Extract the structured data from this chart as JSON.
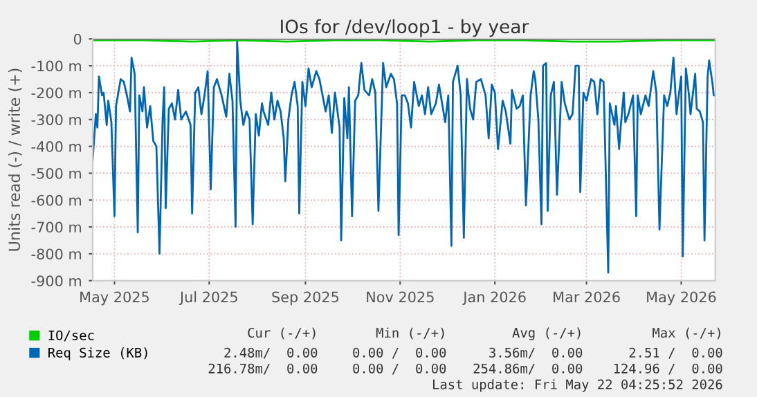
{
  "chart_data": {
    "type": "line",
    "title": "IOs for /dev/loop1 - by year",
    "ylabel": "Units read (-) / write (+)",
    "xlim": [
      "2025-04-17",
      "2026-05-23"
    ],
    "xticks": [
      {
        "value": "2025-05-01",
        "label": "May 2025"
      },
      {
        "value": "2025-07-01",
        "label": "Jul 2025"
      },
      {
        "value": "2025-09-01",
        "label": "Sep 2025"
      },
      {
        "value": "2025-11-01",
        "label": "Nov 2025"
      },
      {
        "value": "2026-01-01",
        "label": "Jan 2026"
      },
      {
        "value": "2026-03-01",
        "label": "Mar 2026"
      },
      {
        "value": "2026-05-01",
        "label": "May 2026"
      }
    ],
    "ylim": [
      -900,
      0
    ],
    "yticks": [
      {
        "value": -900,
        "label": "-900 m"
      },
      {
        "value": -800,
        "label": "-800 m"
      },
      {
        "value": -700,
        "label": "-700 m"
      },
      {
        "value": -600,
        "label": "-600 m"
      },
      {
        "value": -500,
        "label": "-500 m"
      },
      {
        "value": -400,
        "label": "-400 m"
      },
      {
        "value": -300,
        "label": "-300 m"
      },
      {
        "value": -200,
        "label": "-200 m"
      },
      {
        "value": -100,
        "label": "-100 m"
      },
      0
    ],
    "grid": true,
    "legend": "bottom",
    "line_style": "solid",
    "marker": "none",
    "ref_lines": [
      {
        "axis": "y",
        "value": 0,
        "color": "#000000"
      }
    ],
    "series": [
      {
        "name": "IO/sec",
        "color": "#00cc00",
        "x": [
          "2025-04-17",
          "2025-05-20",
          "2025-06-20",
          "2025-07-20",
          "2025-08-20",
          "2025-09-20",
          "2025-10-20",
          "2025-11-20",
          "2025-12-20",
          "2026-01-20",
          "2026-02-20",
          "2026-03-20",
          "2026-04-20",
          "2026-05-22"
        ],
        "values": [
          -5,
          -5,
          -10,
          -5,
          -10,
          -5,
          -5,
          -10,
          -5,
          -5,
          -10,
          -10,
          -5,
          -5
        ]
      },
      {
        "name": "Req Size (KB)",
        "color": "#0066b3",
        "x": [
          "2025-04-17",
          "2025-04-19",
          "2025-04-20",
          "2025-04-21",
          "2025-04-23",
          "2025-04-24",
          "2025-04-26",
          "2025-04-27",
          "2025-04-29",
          "2025-05-01",
          "2025-05-02",
          "2025-05-05",
          "2025-05-07",
          "2025-05-09",
          "2025-05-11",
          "2025-05-12",
          "2025-05-14",
          "2025-05-16",
          "2025-05-17",
          "2025-05-19",
          "2025-05-20",
          "2025-05-22",
          "2025-05-24",
          "2025-05-26",
          "2025-05-28",
          "2025-05-30",
          "2025-06-01",
          "2025-06-02",
          "2025-06-03",
          "2025-06-05",
          "2025-06-07",
          "2025-06-09",
          "2025-06-11",
          "2025-06-13",
          "2025-06-16",
          "2025-06-19",
          "2025-06-20",
          "2025-06-22",
          "2025-06-24",
          "2025-06-26",
          "2025-06-28",
          "2025-06-30",
          "2025-07-02",
          "2025-07-04",
          "2025-07-06",
          "2025-07-09",
          "2025-07-12",
          "2025-07-14",
          "2025-07-16",
          "2025-07-18",
          "2025-07-19",
          "2025-07-21",
          "2025-07-23",
          "2025-07-25",
          "2025-07-27",
          "2025-07-29",
          "2025-07-31",
          "2025-08-02",
          "2025-08-04",
          "2025-08-05",
          "2025-08-08",
          "2025-08-10",
          "2025-08-12",
          "2025-08-14",
          "2025-08-16",
          "2025-08-18",
          "2025-08-19",
          "2025-08-21",
          "2025-08-23",
          "2025-08-25",
          "2025-08-27",
          "2025-08-28",
          "2025-08-30",
          "2025-09-01",
          "2025-09-03",
          "2025-09-05",
          "2025-09-08",
          "2025-09-10",
          "2025-09-12",
          "2025-09-14",
          "2025-09-16",
          "2025-09-18",
          "2025-09-20",
          "2025-09-23",
          "2025-09-24",
          "2025-09-26",
          "2025-09-28",
          "2025-09-29",
          "2025-10-01",
          "2025-10-03",
          "2025-10-05",
          "2025-10-07",
          "2025-10-09",
          "2025-10-12",
          "2025-10-14",
          "2025-10-16",
          "2025-10-18",
          "2025-10-21",
          "2025-10-23",
          "2025-10-26",
          "2025-10-28",
          "2025-10-30",
          "2025-10-31",
          "2025-11-02",
          "2025-11-04",
          "2025-11-06",
          "2025-11-08",
          "2025-11-10",
          "2025-11-13",
          "2025-11-15",
          "2025-11-17",
          "2025-11-19",
          "2025-11-21",
          "2025-11-24",
          "2025-11-26",
          "2025-11-28",
          "2025-11-30",
          "2025-12-02",
          "2025-12-04",
          "2025-12-05",
          "2025-12-08",
          "2025-12-10",
          "2025-12-12",
          "2025-12-14",
          "2025-12-16",
          "2025-12-18",
          "2025-12-20",
          "2025-12-23",
          "2025-12-26",
          "2025-12-28",
          "2025-12-30",
          "2026-01-01",
          "2026-01-03",
          "2026-01-06",
          "2026-01-08",
          "2026-01-11",
          "2026-01-12",
          "2026-01-15",
          "2026-01-17",
          "2026-01-19",
          "2026-01-21",
          "2026-01-24",
          "2026-01-26",
          "2026-01-27",
          "2026-01-29",
          "2026-01-31",
          "2026-02-01",
          "2026-02-03",
          "2026-02-04",
          "2026-02-06",
          "2026-02-08",
          "2026-02-10",
          "2026-02-13",
          "2026-02-15",
          "2026-02-18",
          "2026-02-20",
          "2026-02-22",
          "2026-02-24",
          "2026-02-25",
          "2026-02-27",
          "2026-03-01",
          "2026-03-04",
          "2026-03-06",
          "2026-03-08",
          "2026-03-10",
          "2026-03-12",
          "2026-03-15",
          "2026-03-16",
          "2026-03-19",
          "2026-03-20",
          "2026-03-22",
          "2026-03-23",
          "2026-03-25",
          "2026-03-26",
          "2026-03-28",
          "2026-03-31",
          "2026-04-02",
          "2026-04-03",
          "2026-04-05",
          "2026-04-08",
          "2026-04-10",
          "2026-04-13",
          "2026-04-15",
          "2026-04-17",
          "2026-04-20",
          "2026-04-22",
          "2026-04-24",
          "2026-04-26",
          "2026-04-28",
          "2026-04-29",
          "2026-05-01",
          "2026-05-02",
          "2026-05-04",
          "2026-05-06",
          "2026-05-07",
          "2026-05-10",
          "2026-05-11",
          "2026-05-13",
          "2026-05-15",
          "2026-05-16",
          "2026-05-18",
          "2026-05-19",
          "2026-05-21",
          "2026-05-22"
        ],
        "values": [
          -450,
          -280,
          -330,
          -140,
          -210,
          -200,
          -320,
          -230,
          -310,
          -660,
          -250,
          -150,
          -160,
          -210,
          -270,
          -70,
          -130,
          -720,
          -210,
          -270,
          -180,
          -330,
          -250,
          -380,
          -400,
          -800,
          -300,
          -180,
          -630,
          -260,
          -240,
          -300,
          -190,
          -300,
          -270,
          -320,
          -650,
          -200,
          -180,
          -280,
          -210,
          -120,
          -560,
          -180,
          -150,
          -210,
          -290,
          -130,
          -230,
          -700,
          -10,
          -230,
          -320,
          -270,
          -300,
          -690,
          -280,
          -360,
          -240,
          -270,
          -320,
          -200,
          -300,
          -230,
          -270,
          -370,
          -530,
          -300,
          -210,
          -160,
          -250,
          -650,
          -160,
          -250,
          -110,
          -180,
          -120,
          -150,
          -210,
          -270,
          -210,
          -350,
          -200,
          -330,
          -750,
          -220,
          -370,
          -180,
          -660,
          -230,
          -210,
          -90,
          -190,
          -210,
          -150,
          -200,
          -640,
          -90,
          -180,
          -130,
          -150,
          -240,
          -730,
          -210,
          -210,
          -240,
          -330,
          -160,
          -250,
          -210,
          -280,
          -180,
          -280,
          -240,
          -170,
          -240,
          -310,
          -210,
          -770,
          -160,
          -100,
          -210,
          -740,
          -150,
          -260,
          -300,
          -160,
          -150,
          -210,
          -370,
          -170,
          -200,
          -410,
          -230,
          -270,
          -390,
          -190,
          -260,
          -250,
          -210,
          -620,
          -210,
          -120,
          -150,
          -300,
          -690,
          -100,
          -90,
          -640,
          -210,
          -160,
          -580,
          -160,
          -240,
          -300,
          -280,
          -100,
          -100,
          -570,
          -200,
          -230,
          -150,
          -160,
          -280,
          -150,
          -160,
          -870,
          -240,
          -320,
          -250,
          -410,
          -330,
          -200,
          -310,
          -280,
          -210,
          -660,
          -210,
          -280,
          -210,
          -250,
          -120,
          -200,
          -710,
          -210,
          -250,
          -200,
          -70,
          -280,
          -230,
          -140,
          -810,
          -110,
          -210,
          -280,
          -130,
          -260,
          -270,
          -310,
          -750,
          -140,
          -80,
          -160,
          -210
        ]
      }
    ],
    "annotations": [
      "Cur (-/+)",
      "Min (-/+)",
      "Avg (-/+)",
      "Max (-/+)",
      "2.48m/  0.00",
      "0.00 /  0.00",
      "3.56m/  0.00",
      "2.51 /  0.00",
      "216.78m/  0.00",
      "0.00 /  0.00",
      "254.86m/  0.00",
      "124.96 /  0.00",
      "Last update: Fri May 22 04:25:52 2026"
    ]
  }
}
